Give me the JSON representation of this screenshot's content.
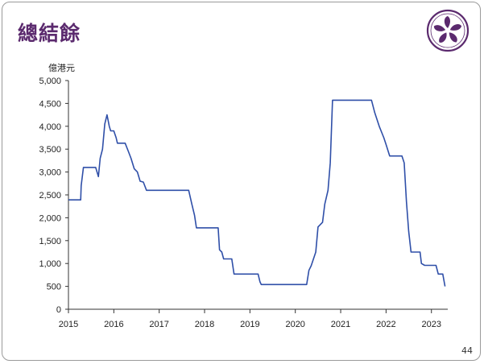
{
  "page": {
    "title": "總結餘",
    "page_number": "44"
  },
  "logo": {
    "icon": "bauhinia-emblem-icon",
    "color": "#5b2a6e"
  },
  "colors": {
    "title": "#5b2a6e",
    "line": "#2f4fa8",
    "axis": "#333333"
  },
  "chart_data": {
    "type": "line",
    "title": "總結餘",
    "ylabel": "億港元",
    "xlabel": "",
    "ylim": [
      0,
      5000
    ],
    "xlim": [
      2015.0,
      2023.3
    ],
    "grid": false,
    "yticks": [
      0,
      500,
      1000,
      1500,
      2000,
      2500,
      3000,
      3500,
      4000,
      4500,
      5000
    ],
    "ytick_labels": [
      "0",
      "500",
      "1,000",
      "1,500",
      "2,000",
      "2,500",
      "3,000",
      "3,500",
      "4,000",
      "4,500",
      "5,000"
    ],
    "xticks": [
      2015,
      2016,
      2017,
      2018,
      2019,
      2020,
      2021,
      2022,
      2023
    ],
    "xtick_labels": [
      "2015",
      "2016",
      "2017",
      "2018",
      "2019",
      "2020",
      "2021",
      "2022",
      "2023"
    ],
    "series": [
      {
        "points": [
          [
            2015.0,
            2390
          ],
          [
            2015.27,
            2390
          ],
          [
            2015.28,
            2700
          ],
          [
            2015.33,
            3100
          ],
          [
            2015.6,
            3100
          ],
          [
            2015.66,
            2900
          ],
          [
            2015.7,
            3300
          ],
          [
            2015.75,
            3500
          ],
          [
            2015.8,
            4050
          ],
          [
            2015.85,
            4250
          ],
          [
            2015.9,
            4000
          ],
          [
            2015.93,
            3900
          ],
          [
            2016.0,
            3900
          ],
          [
            2016.05,
            3750
          ],
          [
            2016.08,
            3630
          ],
          [
            2016.25,
            3630
          ],
          [
            2016.32,
            3450
          ],
          [
            2016.38,
            3300
          ],
          [
            2016.45,
            3070
          ],
          [
            2016.52,
            3000
          ],
          [
            2016.58,
            2800
          ],
          [
            2016.65,
            2780
          ],
          [
            2016.72,
            2600
          ],
          [
            2017.65,
            2600
          ],
          [
            2017.72,
            2300
          ],
          [
            2017.78,
            2050
          ],
          [
            2017.82,
            1780
          ],
          [
            2018.3,
            1780
          ],
          [
            2018.33,
            1300
          ],
          [
            2018.38,
            1250
          ],
          [
            2018.42,
            1100
          ],
          [
            2018.6,
            1100
          ],
          [
            2018.65,
            770
          ],
          [
            2019.18,
            770
          ],
          [
            2019.22,
            600
          ],
          [
            2019.25,
            540
          ],
          [
            2020.25,
            540
          ],
          [
            2020.3,
            850
          ],
          [
            2020.35,
            950
          ],
          [
            2020.45,
            1250
          ],
          [
            2020.5,
            1800
          ],
          [
            2020.6,
            1900
          ],
          [
            2020.65,
            2300
          ],
          [
            2020.72,
            2600
          ],
          [
            2020.77,
            3200
          ],
          [
            2020.82,
            4570
          ],
          [
            2021.68,
            4570
          ],
          [
            2021.75,
            4300
          ],
          [
            2021.85,
            4000
          ],
          [
            2021.95,
            3750
          ],
          [
            2022.0,
            3600
          ],
          [
            2022.08,
            3350
          ],
          [
            2022.35,
            3350
          ],
          [
            2022.4,
            3200
          ],
          [
            2022.45,
            2350
          ],
          [
            2022.5,
            1700
          ],
          [
            2022.55,
            1250
          ],
          [
            2022.75,
            1250
          ],
          [
            2022.78,
            1000
          ],
          [
            2022.85,
            960
          ],
          [
            2023.1,
            960
          ],
          [
            2023.15,
            770
          ],
          [
            2023.25,
            770
          ],
          [
            2023.3,
            500
          ]
        ]
      }
    ]
  }
}
